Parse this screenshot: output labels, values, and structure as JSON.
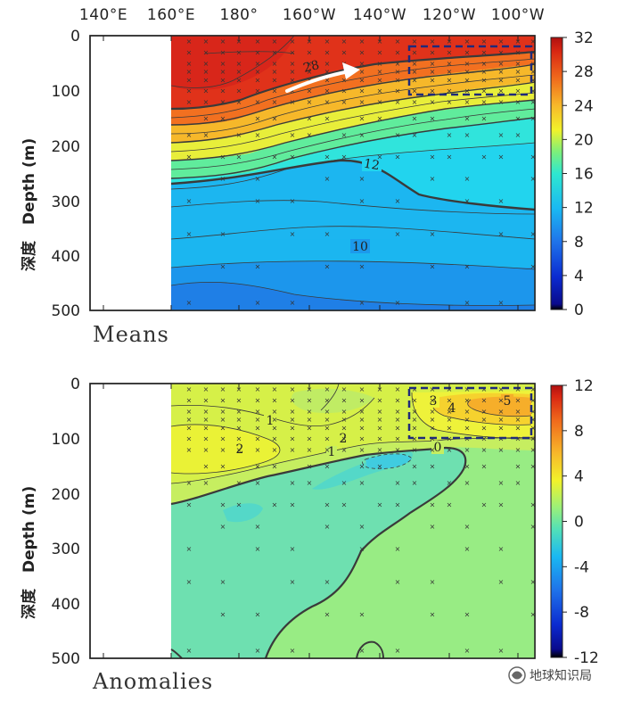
{
  "chart_data": [
    {
      "type": "heatmap",
      "title": "Means",
      "xlabel": "",
      "ylabel_cn": "深度",
      "ylabel": "Depth (m)",
      "x_tick_labels": [
        "140°E",
        "160°E",
        "180°",
        "160°W",
        "140°W",
        "120°W",
        "100°W"
      ],
      "x_tick_values": [
        140,
        160,
        180,
        200,
        220,
        240,
        260
      ],
      "xlim": [
        120,
        265
      ],
      "y_tick_values": [
        0,
        100,
        200,
        300,
        400,
        500
      ],
      "ylim": [
        0,
        500
      ],
      "data_start_lon": 160,
      "colorbar": {
        "min": 0,
        "max": 32,
        "ticks": [
          0,
          4,
          8,
          12,
          16,
          20,
          24,
          28,
          32
        ]
      },
      "contour_labels": [
        {
          "text": "28",
          "lon": 201,
          "depth": 55
        },
        {
          "text": "12",
          "lon": 220,
          "depth": 233
        },
        {
          "text": "10",
          "lon": 212,
          "depth": 386
        }
      ],
      "annotations": [
        {
          "type": "arrow",
          "from_lon": 196,
          "from_depth": 100,
          "to_lon": 222,
          "to_depth": 60
        },
        {
          "type": "dashed_box",
          "lon_range": [
            234,
            264
          ],
          "depth_range": [
            18,
            106
          ]
        }
      ]
    },
    {
      "type": "heatmap",
      "title": "Anomalies",
      "xlabel": "",
      "ylabel_cn": "深度",
      "ylabel": "Depth (m)",
      "x_tick_values": [
        140,
        160,
        180,
        200,
        220,
        240,
        260
      ],
      "xlim": [
        120,
        265
      ],
      "y_tick_values": [
        0,
        100,
        200,
        300,
        400,
        500
      ],
      "ylim": [
        0,
        500
      ],
      "data_start_lon": 160,
      "colorbar": {
        "min": -12,
        "max": 12,
        "ticks": [
          -12,
          -8,
          -4,
          0,
          4,
          8,
          12
        ]
      },
      "contour_labels": [
        {
          "text": "1",
          "lon": 182,
          "depth": 62
        },
        {
          "text": "2",
          "lon": 177,
          "depth": 118
        },
        {
          "text": "2",
          "lon": 213,
          "depth": 102
        },
        {
          "text": "1",
          "lon": 208,
          "depth": 125
        },
        {
          "text": "0",
          "lon": 240,
          "depth": 120
        },
        {
          "text": "3",
          "lon": 239,
          "depth": 30
        },
        {
          "text": "4",
          "lon": 247,
          "depth": 45
        },
        {
          "text": "5",
          "lon": 261,
          "depth": 30
        }
      ],
      "annotations": [
        {
          "type": "dashed_box",
          "lon_range": [
            234,
            264
          ],
          "depth_range": [
            6,
            96
          ]
        }
      ]
    }
  ],
  "watermark": "地球知识局"
}
